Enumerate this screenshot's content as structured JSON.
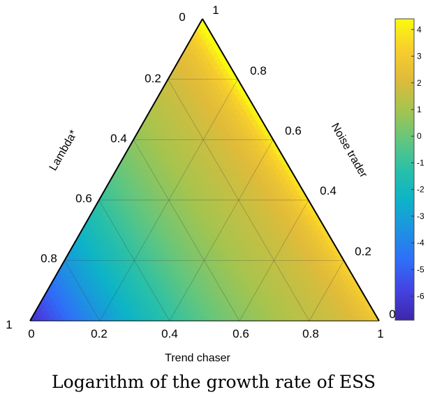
{
  "chart_data": {
    "type": "heatmap",
    "subtype": "ternary",
    "caption": "Logarithm of the growth rate of ESS",
    "axes": {
      "bottom": {
        "label": "Trend chaser",
        "ticks": [
          "0",
          "0.2",
          "0.4",
          "0.6",
          "0.8",
          "1"
        ]
      },
      "left": {
        "label": "Lambda*",
        "ticks": [
          "0",
          "0.2",
          "0.4",
          "0.6",
          "0.8",
          "1"
        ]
      },
      "right": {
        "label": "Noise trader",
        "ticks": [
          "1",
          "0.8",
          "0.6",
          "0.4",
          "0.2",
          "0"
        ]
      }
    },
    "grid": true,
    "grid_step": 0.2,
    "colorbar": {
      "colormap": "parula",
      "ticks": [
        "4",
        "3",
        "2",
        "1",
        "0",
        "-1",
        "-2",
        "-3",
        "-4",
        "-5",
        "-6"
      ],
      "range": [
        -6.9,
        4.4
      ],
      "placement": "right"
    },
    "value_estimates": {
      "lambda_vertex": -6.5,
      "trend_chaser_vertex": 2.0,
      "noise_trader_vertex": 3.5,
      "noise_trader_edge_peak": 4.4
    },
    "colors": {
      "low": "#3e26a8",
      "mid": "#20b2aa",
      "high": "#f9fb0e"
    }
  }
}
